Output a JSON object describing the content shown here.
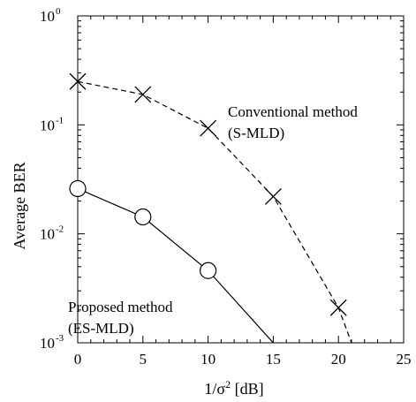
{
  "chart_data": {
    "type": "line",
    "xlabel_base": "1/σ",
    "xlabel_sup": "2",
    "xlabel_unit": " [dB]",
    "ylabel": "Average BER",
    "xlim": [
      0,
      25
    ],
    "ylim": [
      0.001,
      1
    ],
    "yscale": "log",
    "grid": false,
    "x_ticks": [
      {
        "value": 0,
        "label": "0"
      },
      {
        "value": 5,
        "label": "5"
      },
      {
        "value": 10,
        "label": "10"
      },
      {
        "value": 15,
        "label": "15"
      },
      {
        "value": 20,
        "label": "20"
      },
      {
        "value": 25,
        "label": "25"
      }
    ],
    "y_ticks": [
      {
        "value": 1,
        "base": "10",
        "exp": "0"
      },
      {
        "value": 0.1,
        "base": "10",
        "exp": "-1"
      },
      {
        "value": 0.01,
        "base": "10",
        "exp": "-2"
      },
      {
        "value": 0.001,
        "base": "10",
        "exp": "-3"
      }
    ],
    "series": [
      {
        "key": "conventional",
        "marker": "x",
        "dash": "dashed",
        "color": "#000000",
        "points": [
          [
            0,
            0.25
          ],
          [
            5,
            0.19
          ],
          [
            10,
            0.093
          ],
          [
            15,
            0.022
          ],
          [
            20,
            0.0021
          ],
          [
            21,
            0.001
          ]
        ],
        "labels": [
          "Conventional method",
          "(S-MLD)"
        ]
      },
      {
        "key": "proposed",
        "marker": "circle",
        "dash": "solid",
        "color": "#000000",
        "points": [
          [
            0,
            0.026
          ],
          [
            5,
            0.0143
          ],
          [
            10,
            0.0046
          ],
          [
            15,
            0.001
          ]
        ],
        "labels": [
          "Proposed method",
          "(ES-MLD)"
        ]
      }
    ]
  }
}
